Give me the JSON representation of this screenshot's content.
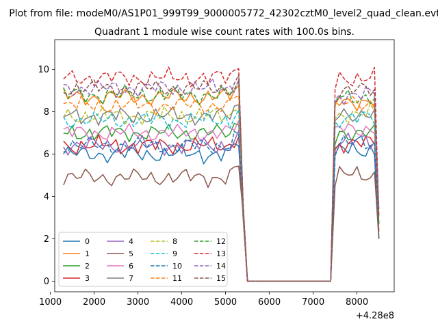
{
  "chart_data": {
    "type": "line",
    "suptitle": "Plot from file: modeM0/AS1P01_999T99_9000005772_42302cztM0_level2_quad_clean.evt",
    "title": "Quadrant 1 module wise count rates with 100.0s bins.",
    "xlabel": "",
    "ylabel": "",
    "x_offset_label": "+4.28e8",
    "xlim": [
      1100,
      8850
    ],
    "ylim": [
      -0.5,
      11.4
    ],
    "x_ticks": [
      1000,
      2000,
      3000,
      4000,
      5000,
      6000,
      7000,
      8000
    ],
    "x_tick_labels": [
      "1000",
      "2000",
      "3000",
      "4000",
      "5000",
      "6000",
      "7000",
      "8000"
    ],
    "y_ticks": [
      0,
      2,
      4,
      6,
      8,
      10
    ],
    "y_tick_labels": [
      "0",
      "2",
      "4",
      "6",
      "8",
      "10"
    ],
    "grid": false,
    "legend_location": "lower-left",
    "legend_columns": 4,
    "x": [
      1300,
      1400,
      1500,
      1600,
      1700,
      1800,
      1900,
      2000,
      2100,
      2200,
      2300,
      2400,
      2500,
      2600,
      2700,
      2800,
      2900,
      3000,
      3100,
      3200,
      3300,
      3400,
      3500,
      3600,
      3700,
      3800,
      3900,
      4000,
      4100,
      4200,
      4300,
      4400,
      4500,
      4600,
      4700,
      4800,
      4900,
      5000,
      5100,
      5200,
      5300,
      5400,
      5500,
      7400,
      7500,
      7600,
      7700,
      7800,
      7900,
      8000,
      8100,
      8200,
      8300,
      8400,
      8500
    ],
    "series": [
      {
        "name": "0",
        "color": "#1f77b4",
        "dash": "solid",
        "base": 6.0,
        "post": 6.2
      },
      {
        "name": "1",
        "color": "#ff7f0e",
        "dash": "solid",
        "base": 8.7,
        "post": 8.5
      },
      {
        "name": "2",
        "color": "#2ca02c",
        "dash": "solid",
        "base": 7.0,
        "post": 7.0
      },
      {
        "name": "3",
        "color": "#d62728",
        "dash": "solid",
        "base": 6.4,
        "post": 6.5
      },
      {
        "name": "4",
        "color": "#9467bd",
        "dash": "solid",
        "base": 6.4,
        "post": 6.6
      },
      {
        "name": "5",
        "color": "#8c564b",
        "dash": "solid",
        "base": 4.9,
        "post": 5.0
      },
      {
        "name": "6",
        "color": "#e377c2",
        "dash": "solid",
        "base": 7.0,
        "post": 7.2
      },
      {
        "name": "7",
        "color": "#7f7f7f",
        "dash": "solid",
        "base": 7.8,
        "post": 7.9
      },
      {
        "name": "8",
        "color": "#bcbd22",
        "dash": "dashed",
        "base": 7.8,
        "post": 7.9
      },
      {
        "name": "9",
        "color": "#17becf",
        "dash": "dashed",
        "base": 7.6,
        "post": 7.7
      },
      {
        "name": "10",
        "color": "#1f77b4",
        "dash": "dashed",
        "base": 6.4,
        "post": 6.5
      },
      {
        "name": "11",
        "color": "#ff7f0e",
        "dash": "dashed",
        "base": 8.3,
        "post": 8.4
      },
      {
        "name": "12",
        "color": "#2ca02c",
        "dash": "dashed",
        "base": 8.8,
        "post": 8.7
      },
      {
        "name": "13",
        "color": "#d62728",
        "dash": "dashed",
        "base": 9.6,
        "post": 9.6
      },
      {
        "name": "14",
        "color": "#9467bd",
        "dash": "dashed",
        "base": 9.1,
        "post": 8.8
      },
      {
        "name": "15",
        "color": "#8c564b",
        "dash": "dashed",
        "base": 9.1,
        "post": 9.0
      }
    ]
  }
}
